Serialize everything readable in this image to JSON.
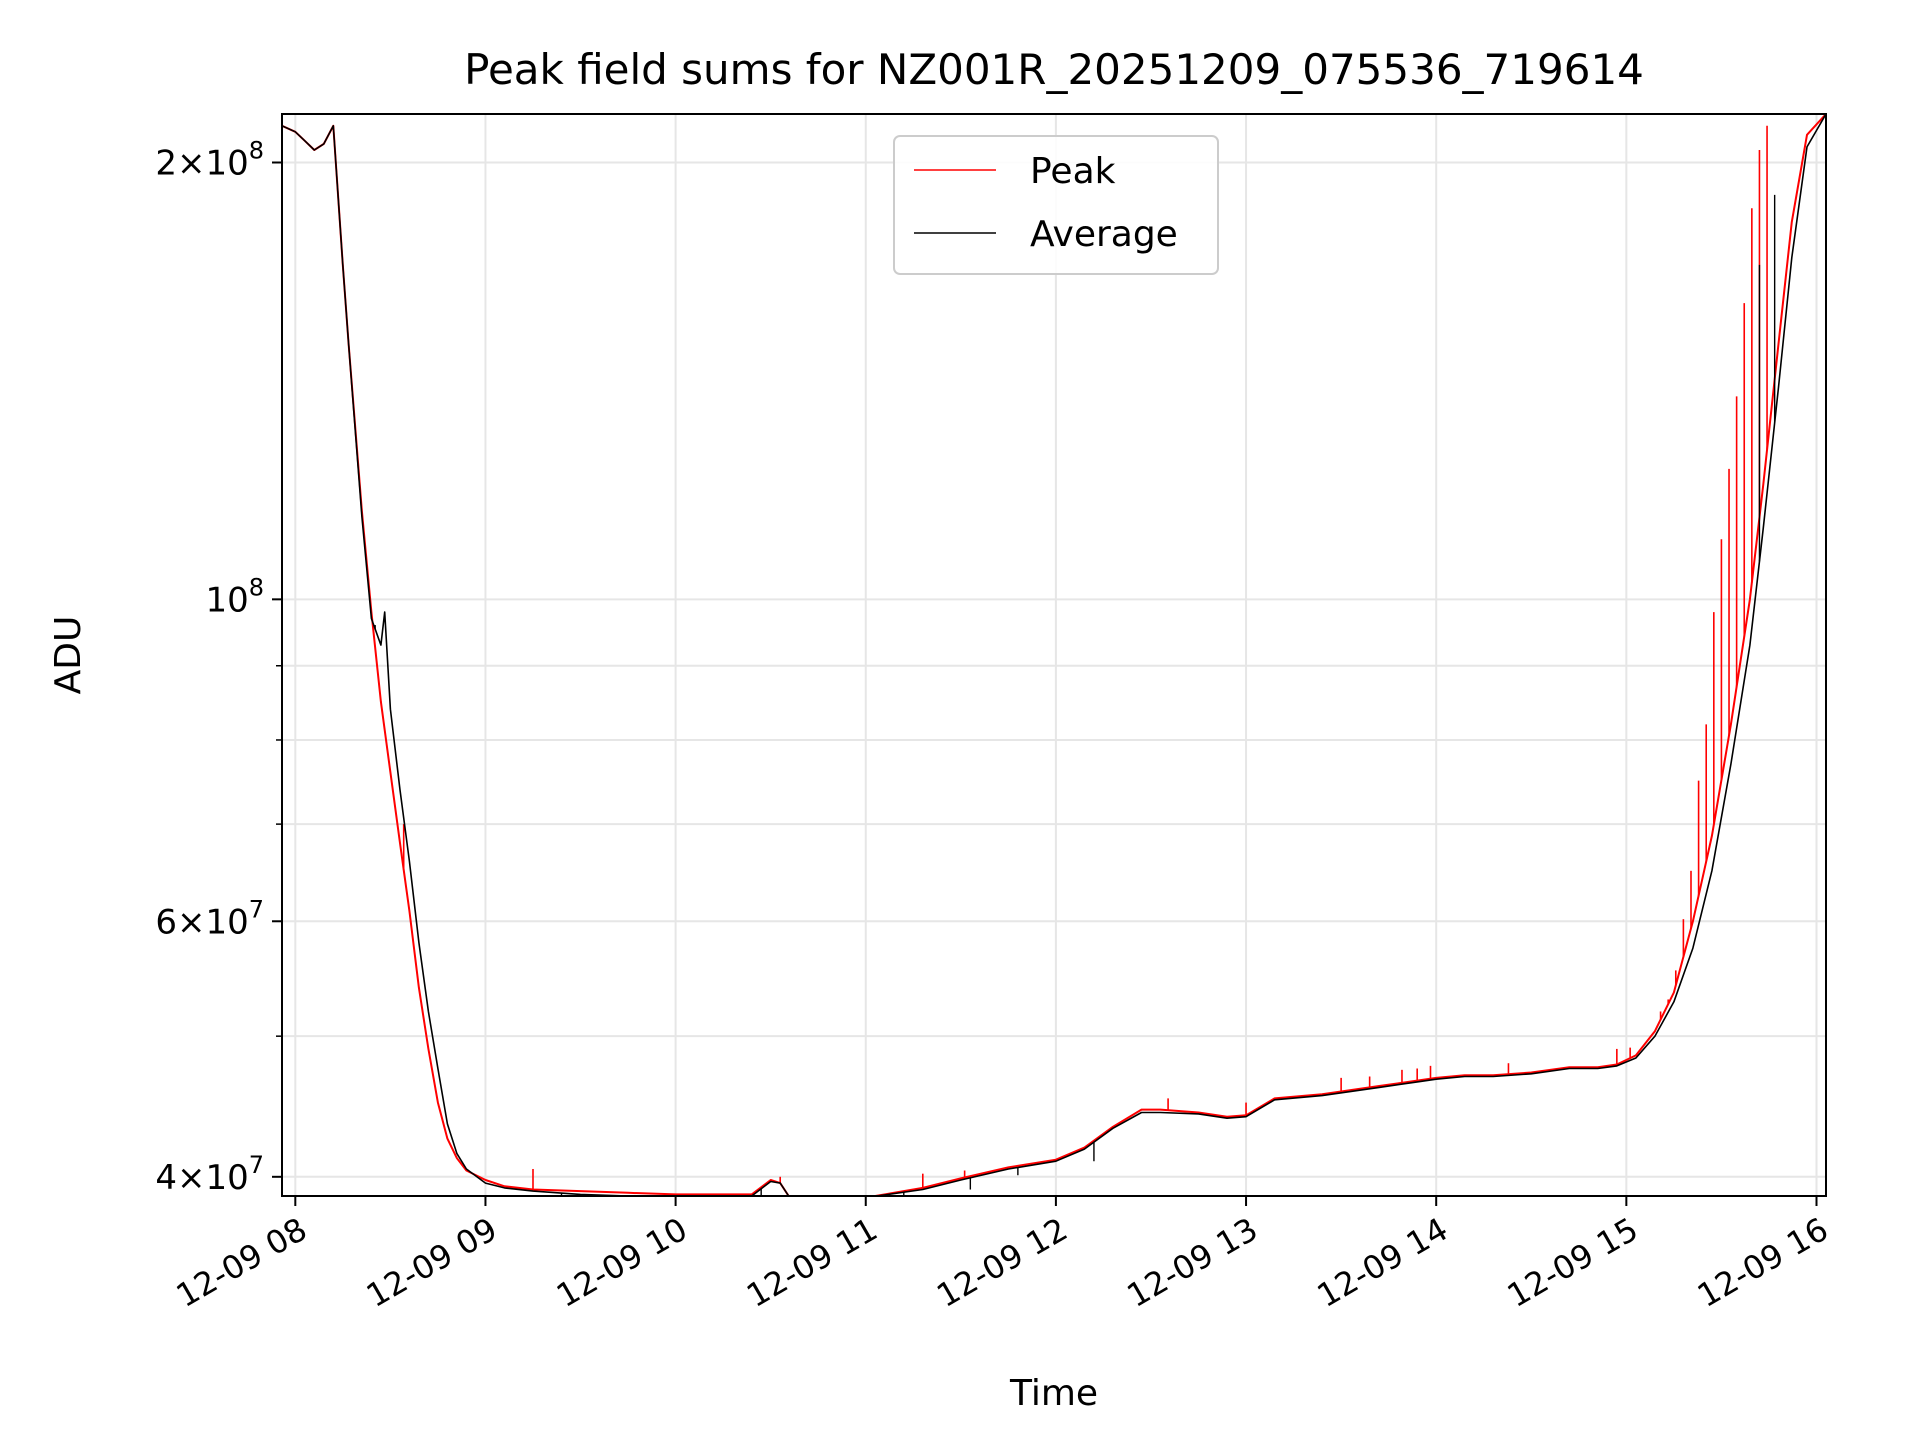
{
  "chart_data": {
    "type": "line",
    "title": "Peak field sums for NZ001R_20251209_075536_719614",
    "xlabel": "Time",
    "ylabel": "ADU",
    "yscale": "log",
    "grid": true,
    "legend_position": "top-center",
    "xlim_hours": [
      7.93,
      16.05
    ],
    "ylim": [
      38800000,
      216000000
    ],
    "x_ticks": [
      {
        "hour": 8,
        "label": "12-09 08"
      },
      {
        "hour": 9,
        "label": "12-09 09"
      },
      {
        "hour": 10,
        "label": "12-09 10"
      },
      {
        "hour": 11,
        "label": "12-09 11"
      },
      {
        "hour": 12,
        "label": "12-09 12"
      },
      {
        "hour": 13,
        "label": "12-09 13"
      },
      {
        "hour": 14,
        "label": "12-09 14"
      },
      {
        "hour": 15,
        "label": "12-09 15"
      },
      {
        "hour": 16,
        "label": "12-09 16"
      }
    ],
    "y_major_ticks": [
      {
        "value": 40000000,
        "base": "4",
        "exp": "7"
      },
      {
        "value": 60000000,
        "base": "6",
        "exp": "7"
      },
      {
        "value": 100000000,
        "base": "",
        "exp": "8"
      },
      {
        "value": 200000000,
        "base": "2",
        "exp": "8"
      }
    ],
    "y_minor_gridlines": [
      50000000,
      70000000,
      80000000,
      90000000
    ],
    "series": [
      {
        "name": "Peak",
        "color": "#ff0000",
        "x_hours": [
          7.93,
          8.0,
          8.05,
          8.1,
          8.15,
          8.2,
          8.25,
          8.28,
          8.35,
          8.4,
          8.45,
          8.5,
          8.55,
          8.6,
          8.65,
          8.7,
          8.75,
          8.8,
          8.85,
          8.9,
          9.0,
          9.1,
          9.25,
          9.5,
          9.75,
          10.0,
          10.4,
          10.5,
          10.55,
          10.6,
          10.75,
          11.0,
          11.3,
          11.5,
          11.75,
          12.0,
          12.15,
          12.3,
          12.45,
          12.55,
          12.75,
          12.9,
          13.0,
          13.15,
          13.4,
          13.7,
          13.9,
          14.0,
          14.15,
          14.3,
          14.5,
          14.7,
          14.85,
          14.95,
          15.05,
          15.15,
          15.25,
          15.35,
          15.45,
          15.55,
          15.65,
          15.72,
          15.8,
          15.87,
          15.95,
          16.05
        ],
        "values": [
          212000000,
          210000000,
          207000000,
          204000000,
          206000000,
          212000000,
          170000000,
          150000000,
          115000000,
          98000000,
          85000000,
          76000000,
          68000000,
          61000000,
          54000000,
          49000000,
          45000000,
          42500000,
          41200000,
          40400000,
          39800000,
          39400000,
          39200000,
          39100000,
          39000000,
          38900000,
          38900000,
          39800000,
          39600000,
          38700000,
          38700000,
          38700000,
          39300000,
          39900000,
          40600000,
          41100000,
          41900000,
          43300000,
          44500000,
          44500000,
          44300000,
          44000000,
          44100000,
          45300000,
          45600000,
          46200000,
          46600000,
          46800000,
          47000000,
          47000000,
          47200000,
          47600000,
          47600000,
          47800000,
          48500000,
          50400000,
          53600000,
          60000000,
          68700000,
          82000000,
          100000000,
          120000000,
          150000000,
          182000000,
          209000000,
          216000000
        ],
        "spikes": [
          {
            "x": 8.57,
            "value": 70000000
          },
          {
            "x": 9.25,
            "value": 40500000
          },
          {
            "x": 10.55,
            "value": 40000000
          },
          {
            "x": 11.3,
            "value": 40200000
          },
          {
            "x": 11.52,
            "value": 40400000
          },
          {
            "x": 12.59,
            "value": 45300000
          },
          {
            "x": 13.0,
            "value": 45000000
          },
          {
            "x": 13.5,
            "value": 46800000
          },
          {
            "x": 13.65,
            "value": 46900000
          },
          {
            "x": 13.82,
            "value": 47400000
          },
          {
            "x": 13.9,
            "value": 47500000
          },
          {
            "x": 13.97,
            "value": 47700000
          },
          {
            "x": 14.38,
            "value": 47900000
          },
          {
            "x": 14.95,
            "value": 49000000
          },
          {
            "x": 15.02,
            "value": 49100000
          },
          {
            "x": 15.18,
            "value": 52000000
          },
          {
            "x": 15.22,
            "value": 53000000
          },
          {
            "x": 15.26,
            "value": 55500000
          },
          {
            "x": 15.3,
            "value": 60200000
          },
          {
            "x": 15.34,
            "value": 65000000
          },
          {
            "x": 15.38,
            "value": 75000000
          },
          {
            "x": 15.42,
            "value": 82000000
          },
          {
            "x": 15.46,
            "value": 98000000
          },
          {
            "x": 15.5,
            "value": 110000000
          },
          {
            "x": 15.54,
            "value": 123000000
          },
          {
            "x": 15.58,
            "value": 138000000
          },
          {
            "x": 15.62,
            "value": 160000000
          },
          {
            "x": 15.66,
            "value": 186000000
          },
          {
            "x": 15.7,
            "value": 204000000
          },
          {
            "x": 15.74,
            "value": 212000000
          }
        ]
      },
      {
        "name": "Average",
        "color": "#000000",
        "x_hours": [
          7.93,
          8.0,
          8.05,
          8.1,
          8.15,
          8.2,
          8.25,
          8.28,
          8.35,
          8.4,
          8.45,
          8.47,
          8.5,
          8.55,
          8.6,
          8.65,
          8.7,
          8.75,
          8.8,
          8.85,
          8.9,
          9.0,
          9.1,
          9.25,
          9.5,
          9.75,
          10.0,
          10.4,
          10.5,
          10.55,
          10.6,
          10.75,
          11.0,
          11.3,
          11.5,
          11.75,
          12.0,
          12.15,
          12.3,
          12.45,
          12.55,
          12.75,
          12.9,
          13.0,
          13.15,
          13.4,
          13.7,
          13.9,
          14.0,
          14.15,
          14.3,
          14.5,
          14.7,
          14.85,
          14.95,
          15.05,
          15.15,
          15.25,
          15.35,
          15.45,
          15.55,
          15.65,
          15.72,
          15.8,
          15.87,
          15.95,
          16.05
        ],
        "values": [
          212000000,
          210000000,
          207000000,
          204000000,
          206000000,
          212000000,
          170000000,
          150000000,
          114000000,
          97000000,
          93000000,
          98000000,
          84000000,
          74000000,
          66000000,
          58000000,
          52000000,
          47500000,
          43500000,
          41500000,
          40500000,
          39600000,
          39300000,
          39100000,
          38900000,
          38800000,
          38800000,
          38800000,
          39700000,
          39600000,
          38700000,
          38600000,
          38700000,
          39200000,
          39800000,
          40500000,
          41000000,
          41800000,
          43200000,
          44300000,
          44300000,
          44200000,
          43900000,
          44000000,
          45200000,
          45500000,
          46100000,
          46500000,
          46700000,
          46900000,
          46900000,
          47100000,
          47500000,
          47500000,
          47700000,
          48300000,
          50000000,
          52800000,
          57500000,
          65000000,
          77000000,
          93000000,
          112000000,
          140000000,
          172000000,
          205000000,
          216000000
        ],
        "dips": [
          {
            "x": 8.42,
            "value": 96000000
          },
          {
            "x": 9.4,
            "value": 38500000
          },
          {
            "x": 10.45,
            "value": 38400000
          },
          {
            "x": 11.2,
            "value": 38600000
          },
          {
            "x": 11.55,
            "value": 39200000
          },
          {
            "x": 11.8,
            "value": 40100000
          },
          {
            "x": 12.2,
            "value": 41000000
          },
          {
            "x": 15.7,
            "value": 170000000
          },
          {
            "x": 15.78,
            "value": 190000000
          }
        ]
      }
    ]
  }
}
